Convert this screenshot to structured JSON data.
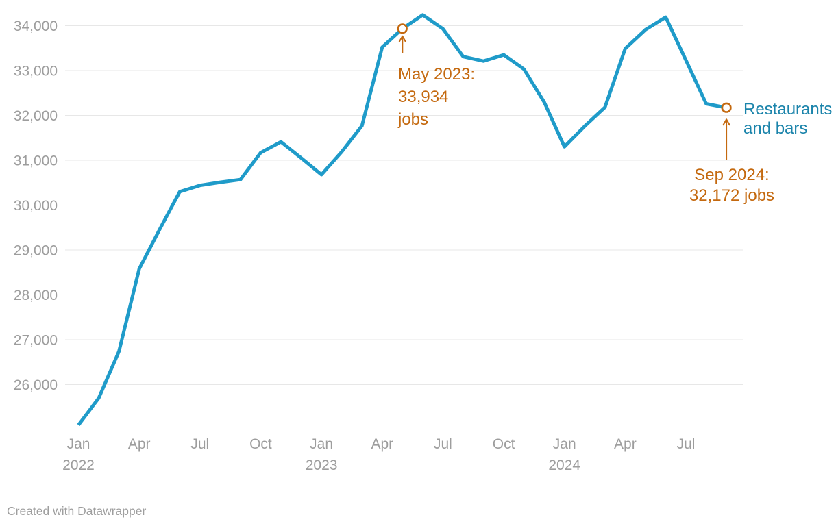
{
  "footer": {
    "text": "Created with Datawrapper"
  },
  "chart_data": {
    "type": "line",
    "title": "",
    "xlabel": "",
    "ylabel": "",
    "grid": "horizontal",
    "legend_position": "line-end-label",
    "ylim": [
      25000,
      34400
    ],
    "series": [
      {
        "name": "Restaurants and bars",
        "x": [
          "Jan 2022",
          "Feb 2022",
          "Mar 2022",
          "Apr 2022",
          "May 2022",
          "Jun 2022",
          "Jul 2022",
          "Aug 2022",
          "Sep 2022",
          "Oct 2022",
          "Nov 2022",
          "Dec 2022",
          "Jan 2023",
          "Feb 2023",
          "Mar 2023",
          "Apr 2023",
          "May 2023",
          "Jun 2023",
          "Jul 2023",
          "Aug 2023",
          "Sep 2023",
          "Oct 2023",
          "Nov 2023",
          "Dec 2023",
          "Jan 2024",
          "Feb 2024",
          "Mar 2024",
          "Apr 2024",
          "May 2024",
          "Jun 2024",
          "Jul 2024",
          "Aug 2024",
          "Sep 2024"
        ],
        "values": [
          25100,
          25700,
          26740,
          28580,
          29450,
          30300,
          30440,
          30510,
          30570,
          31170,
          31410,
          31050,
          30680,
          31190,
          31770,
          33520,
          33934,
          34240,
          33930,
          33310,
          33210,
          33350,
          33030,
          32300,
          31300,
          31760,
          32180,
          33490,
          33910,
          34190,
          33230,
          32260,
          32172
        ]
      }
    ],
    "yticks": [
      {
        "value": 26000,
        "label": "26,000"
      },
      {
        "value": 27000,
        "label": "27,000"
      },
      {
        "value": 28000,
        "label": "28,000"
      },
      {
        "value": 29000,
        "label": "29,000"
      },
      {
        "value": 30000,
        "label": "30,000"
      },
      {
        "value": 31000,
        "label": "31,000"
      },
      {
        "value": 32000,
        "label": "32,000"
      },
      {
        "value": 33000,
        "label": "33,000"
      },
      {
        "value": 34000,
        "label": "34,000"
      }
    ],
    "xticks": [
      {
        "index": 0,
        "label": "Jan",
        "year": "2022"
      },
      {
        "index": 3,
        "label": "Apr"
      },
      {
        "index": 6,
        "label": "Jul"
      },
      {
        "index": 9,
        "label": "Oct"
      },
      {
        "index": 12,
        "label": "Jan",
        "year": "2023"
      },
      {
        "index": 15,
        "label": "Apr"
      },
      {
        "index": 18,
        "label": "Jul"
      },
      {
        "index": 21,
        "label": "Oct"
      },
      {
        "index": 24,
        "label": "Jan",
        "year": "2024"
      },
      {
        "index": 27,
        "label": "Apr"
      },
      {
        "index": 30,
        "label": "Jul"
      }
    ],
    "annotations": [
      {
        "id": "may-2023",
        "point_index": 16,
        "value": 33934,
        "lines": [
          "May 2023:",
          "33,934",
          "jobs"
        ]
      },
      {
        "id": "sep-2024",
        "point_index": 32,
        "value": 32172,
        "lines": [
          "Sep 2024:",
          "32,172 jobs"
        ]
      }
    ],
    "series_label": {
      "lines": [
        "Restaurants",
        "and bars"
      ]
    },
    "colors": {
      "line": "#1f9bc9",
      "annotation": "#c4690f",
      "series_label": "#1b84ab",
      "axis_text": "#9d9d9d",
      "gridline": "#e7e7e7",
      "credit_text": "#9e9e9e",
      "marker_fill": "#ffffff",
      "background": "#ffffff"
    }
  }
}
